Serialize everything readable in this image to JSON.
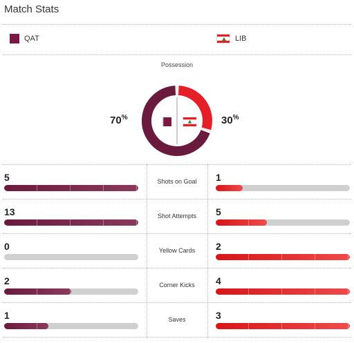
{
  "header": {
    "title": "Match Stats"
  },
  "teams": {
    "home": {
      "abbr": "QAT",
      "flag": "qatar-flag",
      "color": "#6a1a3c"
    },
    "away": {
      "abbr": "LIB",
      "flag": "lebanon-flag",
      "color": "#e41f26"
    }
  },
  "possession": {
    "label": "Possession",
    "home_value": "70",
    "away_value": "30",
    "unit": "%",
    "home_fraction": 0.7,
    "away_fraction": 0.3
  },
  "stats": [
    {
      "label": "Shots on Goal",
      "home": "5",
      "away": "1",
      "home_fill": 1.0,
      "away_fill": 0.2
    },
    {
      "label": "Shot Attempts",
      "home": "13",
      "away": "5",
      "home_fill": 1.0,
      "away_fill": 0.38
    },
    {
      "label": "Yellow Cards",
      "home": "0",
      "away": "2",
      "home_fill": 0.0,
      "away_fill": 1.0
    },
    {
      "label": "Corner Kicks",
      "home": "2",
      "away": "4",
      "home_fill": 0.5,
      "away_fill": 1.0
    },
    {
      "label": "Saves",
      "home": "1",
      "away": "3",
      "home_fill": 0.33,
      "away_fill": 1.0
    }
  ]
}
